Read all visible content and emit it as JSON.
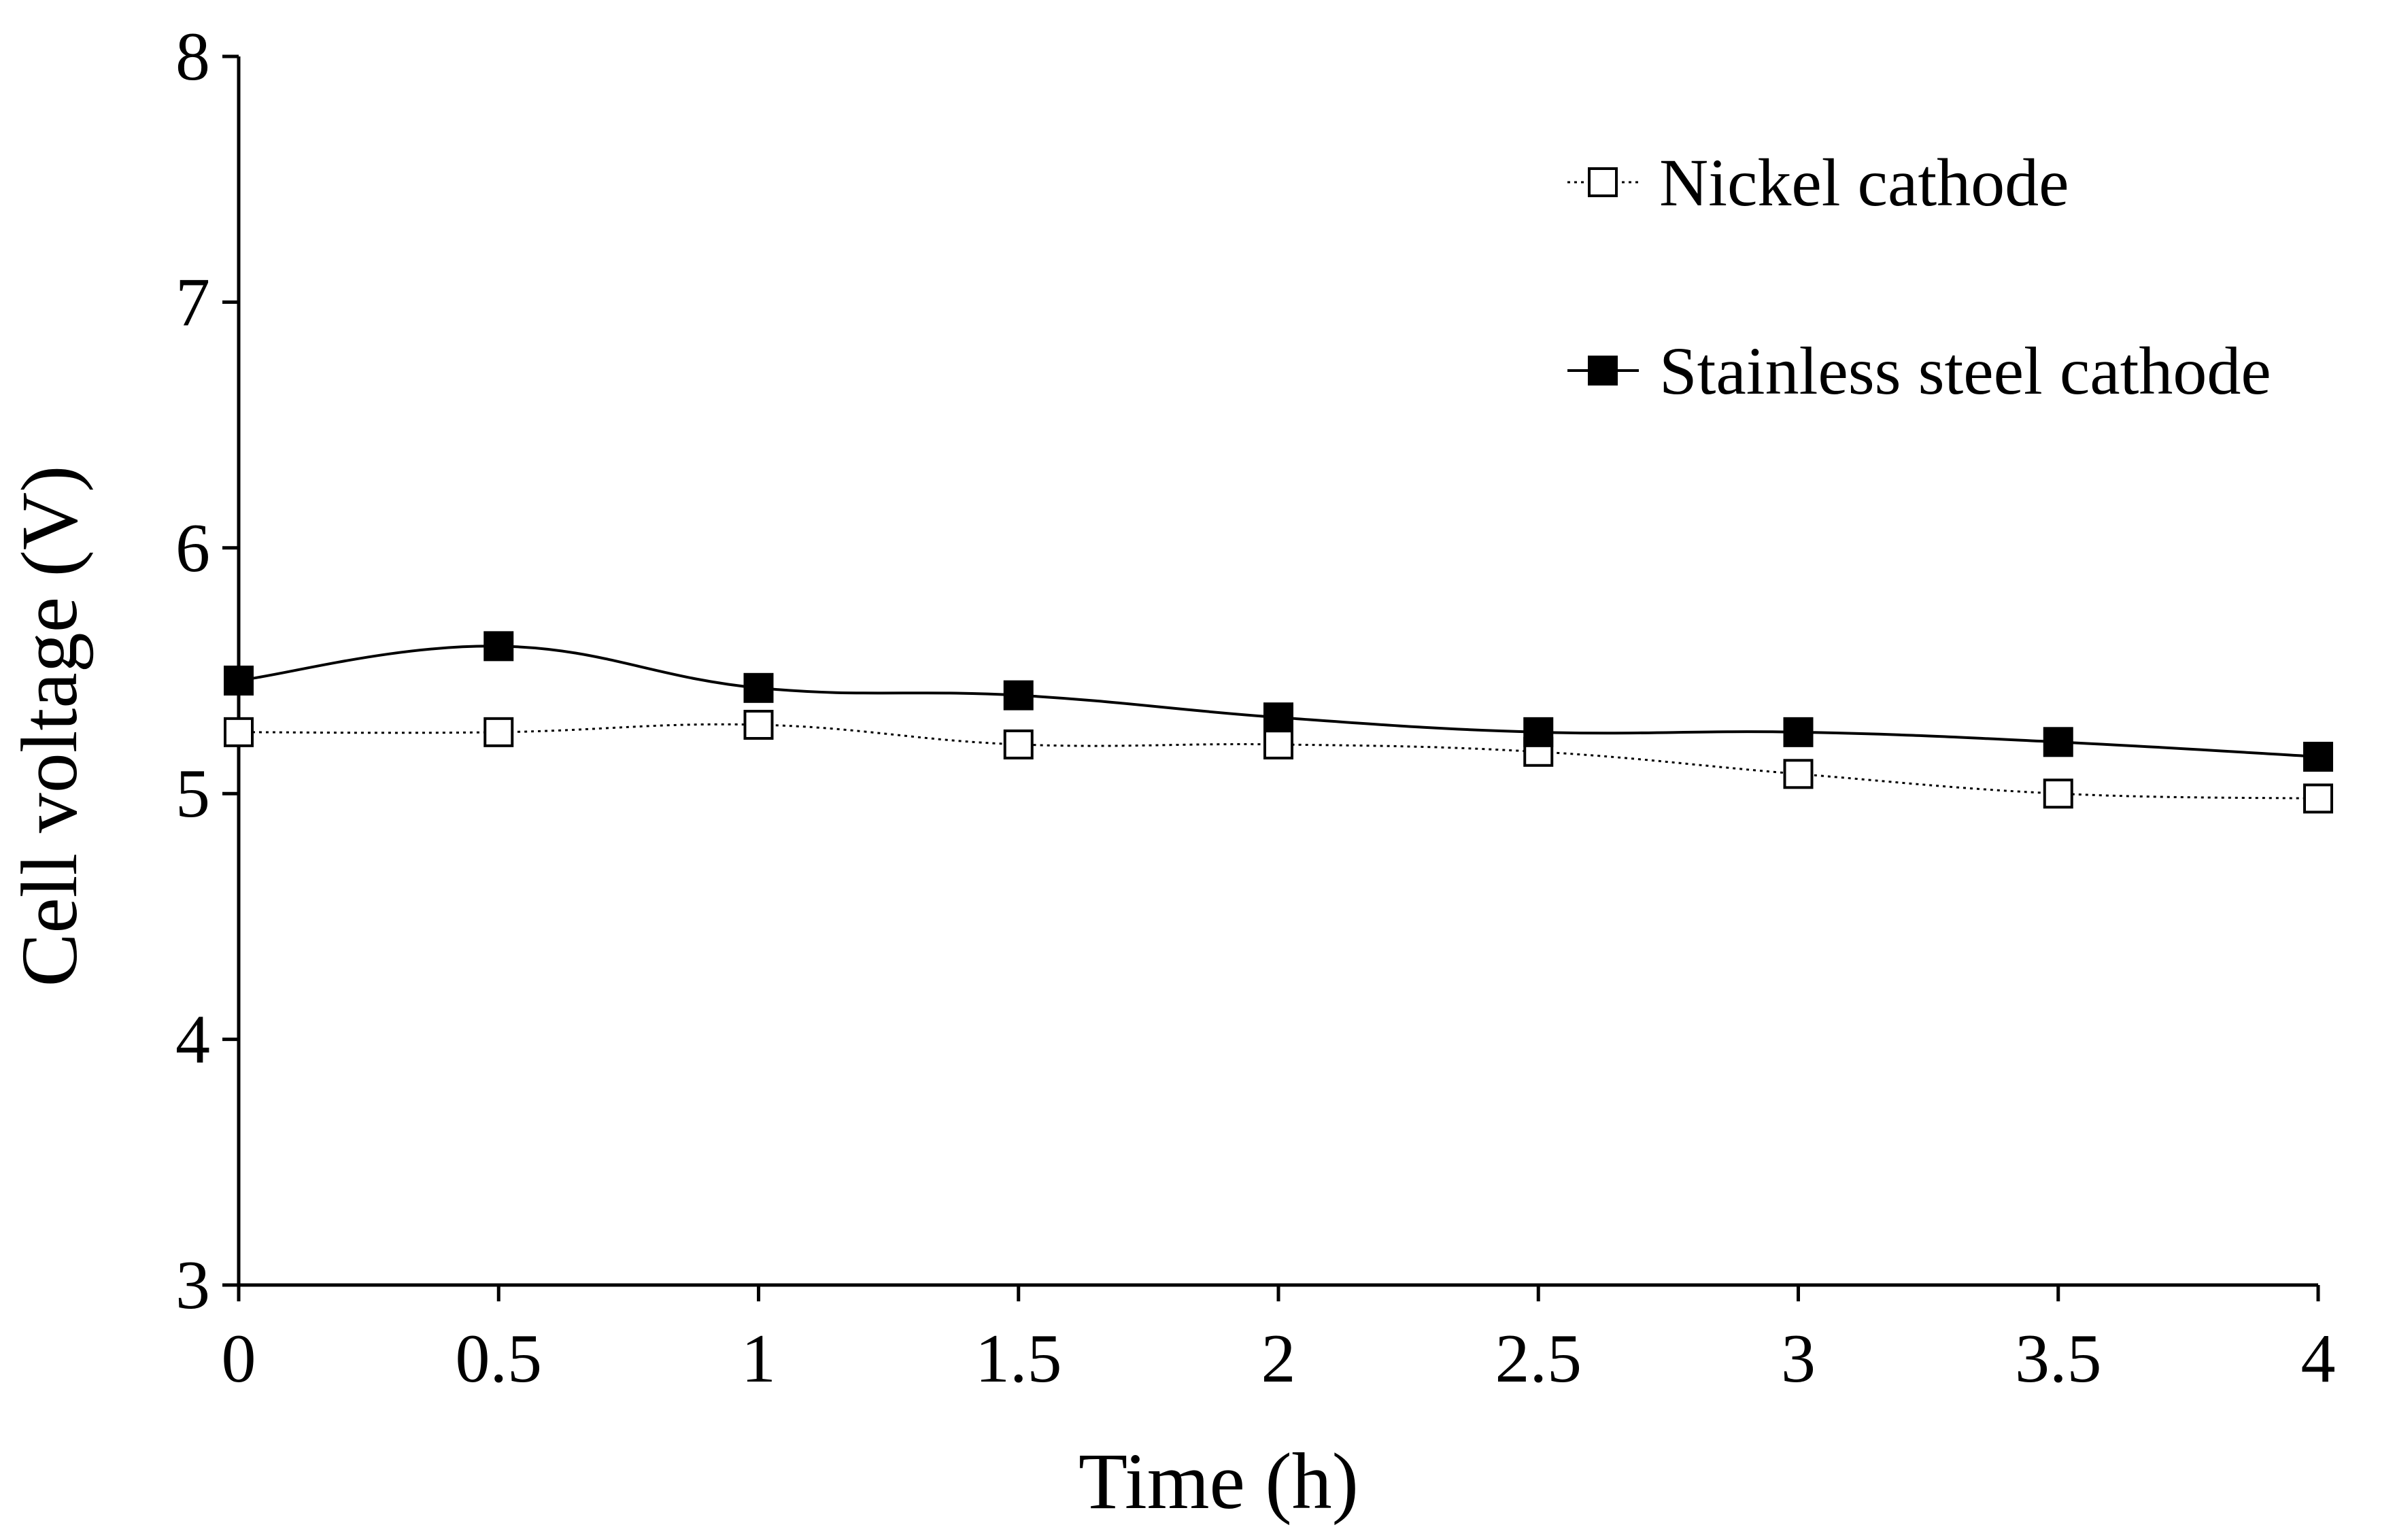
{
  "chart_data": {
    "type": "line",
    "title": "",
    "xlabel": "Time (h)",
    "ylabel": "Cell voltage (V)",
    "xlim": [
      0,
      4
    ],
    "ylim": [
      3,
      8
    ],
    "x_ticks": [
      "0",
      "0.5",
      "1",
      "1.5",
      "2",
      "2.5",
      "3",
      "3.5",
      "4"
    ],
    "y_ticks": [
      "3",
      "4",
      "5",
      "6",
      "7",
      "8"
    ],
    "grid": false,
    "legend_position": "top-right",
    "x": [
      0,
      0.5,
      1,
      1.5,
      2,
      2.5,
      3,
      3.5,
      4
    ],
    "series": [
      {
        "name": "Nickel cathode",
        "marker": "open-square",
        "line_style": "dotted",
        "color": "#000000",
        "values": [
          5.25,
          5.25,
          5.28,
          5.2,
          5.2,
          5.17,
          5.08,
          5.0,
          4.98
        ]
      },
      {
        "name": "Stainless steel cathode",
        "marker": "filled-square",
        "line_style": "solid",
        "color": "#000000",
        "values": [
          5.46,
          5.6,
          5.43,
          5.4,
          5.31,
          5.25,
          5.25,
          5.21,
          5.15
        ]
      }
    ]
  }
}
